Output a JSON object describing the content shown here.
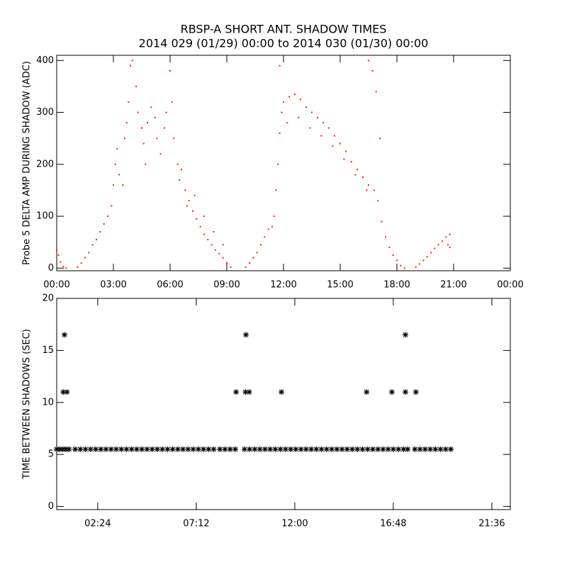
{
  "chart_data": [
    {
      "type": "scatter",
      "title": "RBSP-A SHORT ANT. SHADOW TIMES",
      "subtitle": "2014 029 (01/29) 00:00 to 2014 030 (01/30) 00:00",
      "y_label": "Probe 5 DELTA AMP DURING SHADOW (ADC)",
      "marker": "dot",
      "xlim": [
        0,
        24
      ],
      "ylim": [
        -5,
        410
      ],
      "xticks": [
        {
          "value": 0,
          "label": "00:00"
        },
        {
          "value": 3,
          "label": "03:00"
        },
        {
          "value": 6,
          "label": "06:00"
        },
        {
          "value": 9,
          "label": "09:00"
        },
        {
          "value": 12,
          "label": "12:00"
        },
        {
          "value": 15,
          "label": "15:00"
        },
        {
          "value": 18,
          "label": "18:00"
        },
        {
          "value": 21,
          "label": "21:00"
        },
        {
          "value": 24,
          "label": "00:00"
        }
      ],
      "yticks": [
        0,
        100,
        200,
        300,
        400
      ],
      "series": [
        {
          "color": "#ff2000",
          "x": [
            0.0,
            0.1,
            0.2,
            0.35,
            0.5,
            1.1,
            1.3,
            1.5,
            1.7,
            1.9,
            2.1,
            2.3,
            2.5,
            2.7,
            2.9,
            3.0,
            3.1,
            3.2,
            3.3,
            3.5,
            3.6,
            3.7,
            3.8,
            3.9,
            4.0,
            4.2,
            4.3,
            4.5,
            4.6,
            4.7,
            4.8,
            5.0,
            5.2,
            5.3,
            5.5,
            5.7,
            5.8,
            6.0,
            6.1,
            6.2,
            6.4,
            6.6,
            6.8,
            7.0,
            7.2,
            7.4,
            7.6,
            7.8,
            8.0,
            8.2,
            8.4,
            8.6,
            8.8,
            9.0,
            9.2,
            6.5,
            6.9,
            7.3,
            7.8,
            8.3,
            8.8,
            10.0,
            10.2,
            10.4,
            10.6,
            10.8,
            11.0,
            11.2,
            11.4,
            11.5,
            11.6,
            11.7,
            11.8,
            11.9,
            12.0,
            12.3,
            12.6,
            12.9,
            13.2,
            13.5,
            13.8,
            14.1,
            14.4,
            14.7,
            15.0,
            15.3,
            15.6,
            15.9,
            16.2,
            16.5,
            16.8,
            17.0,
            12.2,
            12.8,
            13.4,
            14.0,
            14.6,
            15.2,
            15.8,
            16.4,
            17.2,
            17.4,
            17.6,
            17.8,
            18.0,
            18.2,
            18.4,
            16.5,
            16.7,
            16.9,
            17.1,
            11.8,
            19.0,
            19.2,
            19.4,
            19.6,
            19.8,
            20.0,
            20.2,
            20.4,
            20.6,
            20.8,
            20.7,
            20.8
          ],
          "values": [
            35,
            25,
            12,
            3,
            0,
            2,
            10,
            20,
            30,
            45,
            55,
            70,
            85,
            100,
            120,
            160,
            200,
            230,
            180,
            160,
            250,
            280,
            320,
            390,
            400,
            350,
            300,
            270,
            240,
            200,
            280,
            310,
            290,
            250,
            220,
            270,
            300,
            380,
            320,
            250,
            200,
            190,
            150,
            130,
            110,
            95,
            80,
            65,
            55,
            45,
            35,
            28,
            20,
            10,
            2,
            170,
            120,
            140,
            100,
            70,
            45,
            2,
            10,
            20,
            30,
            45,
            60,
            75,
            80,
            100,
            150,
            200,
            260,
            300,
            320,
            330,
            335,
            325,
            310,
            300,
            290,
            280,
            270,
            255,
            240,
            225,
            205,
            190,
            175,
            160,
            150,
            130,
            280,
            290,
            270,
            255,
            235,
            210,
            180,
            150,
            90,
            60,
            40,
            25,
            15,
            5,
            0,
            400,
            380,
            340,
            250,
            390,
            2,
            8,
            15,
            22,
            30,
            38,
            45,
            52,
            60,
            65,
            45,
            40
          ]
        }
      ]
    },
    {
      "type": "scatter",
      "y_label": "TIME BETWEEN SHADOWS (SEC)",
      "marker": "asterisk",
      "xlim": [
        0.4,
        22.5
      ],
      "ylim": [
        -0.3,
        20
      ],
      "xticks": [
        {
          "value": 2.4,
          "label": "02:24"
        },
        {
          "value": 7.2,
          "label": "07:12"
        },
        {
          "value": 12,
          "label": "12:00"
        },
        {
          "value": 16.8,
          "label": "16:48"
        },
        {
          "value": 21.6,
          "label": "21:36"
        }
      ],
      "yticks": [
        0,
        5,
        10,
        15,
        20
      ],
      "series": [
        {
          "color": "#000000",
          "x": [
            0.78,
            0.72,
            0.9,
            9.14,
            9.62,
            9.6,
            9.78,
            11.35,
            15.5,
            16.73,
            17.39,
            17.39,
            17.9,
            0.4,
            0.55,
            0.7,
            0.85,
            1.0,
            1.3,
            1.55,
            1.8,
            2.05,
            2.3,
            2.55,
            2.8,
            3.05,
            3.3,
            3.55,
            3.8,
            4.05,
            4.3,
            4.55,
            4.8,
            5.05,
            5.3,
            5.55,
            5.8,
            6.05,
            6.3,
            6.55,
            6.8,
            7.05,
            7.3,
            7.55,
            7.8,
            8.05,
            8.35,
            8.6,
            8.85,
            9.1,
            9.55,
            9.8,
            10.05,
            10.3,
            10.55,
            10.8,
            11.05,
            11.3,
            11.55,
            11.8,
            12.05,
            12.3,
            12.55,
            12.8,
            13.05,
            13.3,
            13.55,
            13.8,
            14.05,
            14.3,
            14.55,
            14.8,
            15.05,
            15.3,
            15.55,
            15.8,
            16.05,
            16.3,
            16.55,
            16.8,
            17.05,
            17.3,
            17.5,
            17.85,
            18.1,
            18.35,
            18.6,
            18.85,
            19.1,
            19.35,
            19.6
          ],
          "values": [
            16.5,
            11,
            11,
            11,
            16.5,
            11,
            11,
            11,
            11,
            11,
            16.5,
            11,
            11,
            5.5,
            5.5,
            5.5,
            5.5,
            5.5,
            5.5,
            5.5,
            5.5,
            5.5,
            5.5,
            5.5,
            5.5,
            5.5,
            5.5,
            5.5,
            5.5,
            5.5,
            5.5,
            5.5,
            5.5,
            5.5,
            5.5,
            5.5,
            5.5,
            5.5,
            5.5,
            5.5,
            5.5,
            5.5,
            5.5,
            5.5,
            5.5,
            5.5,
            5.5,
            5.5,
            5.5,
            5.5,
            5.5,
            5.5,
            5.5,
            5.5,
            5.5,
            5.5,
            5.5,
            5.5,
            5.5,
            5.5,
            5.5,
            5.5,
            5.5,
            5.5,
            5.5,
            5.5,
            5.5,
            5.5,
            5.5,
            5.5,
            5.5,
            5.5,
            5.5,
            5.5,
            5.5,
            5.5,
            5.5,
            5.5,
            5.5,
            5.5,
            5.5,
            5.5,
            5.5,
            5.5,
            5.5,
            5.5,
            5.5,
            5.5,
            5.5,
            5.5,
            5.5
          ]
        }
      ]
    }
  ]
}
